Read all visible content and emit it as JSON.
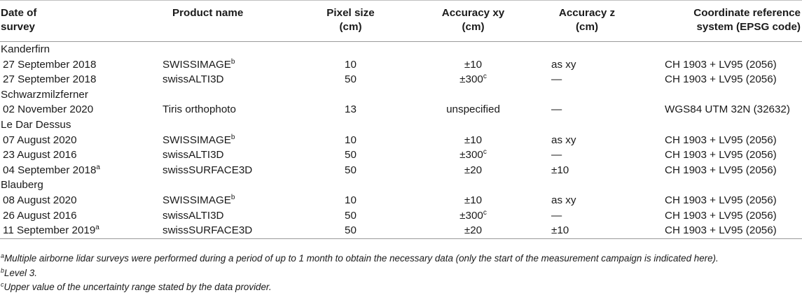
{
  "header": {
    "date": "Date of survey",
    "product": "Product name",
    "pixel": "Pixel size (cm)",
    "acc_xy": "Accuracy xy (cm)",
    "acc_z": "Accuracy z (cm)",
    "crs": "Coordinate reference system (EPSG code)"
  },
  "groups": [
    {
      "name": "Kanderfirn",
      "rows": [
        {
          "date": "27 September 2018",
          "date_sup": "",
          "product": "SWISSIMAGE",
          "product_sup": "b",
          "pixel": "10",
          "acc_xy": "±10",
          "acc_xy_sup": "",
          "acc_z": "as xy",
          "crs": "CH 1903 + LV95 (2056)"
        },
        {
          "date": "27 September 2018",
          "date_sup": "",
          "product": "swissALTI3D",
          "product_sup": "",
          "pixel": "50",
          "acc_xy": "±300",
          "acc_xy_sup": "c",
          "acc_z": "—",
          "crs": "CH 1903 + LV95 (2056)"
        }
      ]
    },
    {
      "name": "Schwarzmilzferner",
      "rows": [
        {
          "date": "02 November 2020",
          "date_sup": "",
          "product": "Tiris orthophoto",
          "product_sup": "",
          "pixel": "13",
          "acc_xy": "unspecified",
          "acc_xy_sup": "",
          "acc_z": "—",
          "crs": "WGS84 UTM 32N (32632)"
        }
      ]
    },
    {
      "name": "Le Dar Dessus",
      "rows": [
        {
          "date": "07 August 2020",
          "date_sup": "",
          "product": "SWISSIMAGE",
          "product_sup": "b",
          "pixel": "10",
          "acc_xy": "±10",
          "acc_xy_sup": "",
          "acc_z": "as xy",
          "crs": "CH 1903 + LV95 (2056)"
        },
        {
          "date": "23 August 2016",
          "date_sup": "",
          "product": "swissALTI3D",
          "product_sup": "",
          "pixel": "50",
          "acc_xy": "±300",
          "acc_xy_sup": "c",
          "acc_z": "—",
          "crs": "CH 1903 + LV95 (2056)"
        },
        {
          "date": "04 September 2018",
          "date_sup": "a",
          "product": "swissSURFACE3D",
          "product_sup": "",
          "pixel": "50",
          "acc_xy": "±20",
          "acc_xy_sup": "",
          "acc_z": "±10",
          "crs": "CH 1903 + LV95 (2056)"
        }
      ]
    },
    {
      "name": "Blauberg",
      "rows": [
        {
          "date": "08 August 2020",
          "date_sup": "",
          "product": "SWISSIMAGE",
          "product_sup": "b",
          "pixel": "10",
          "acc_xy": "±10",
          "acc_xy_sup": "",
          "acc_z": "as xy",
          "crs": "CH 1903 + LV95 (2056)"
        },
        {
          "date": "26 August 2016",
          "date_sup": "",
          "product": "swissALTI3D",
          "product_sup": "",
          "pixel": "50",
          "acc_xy": "±300",
          "acc_xy_sup": "c",
          "acc_z": "—",
          "crs": "CH 1903 + LV95 (2056)"
        },
        {
          "date": "11 September 2019",
          "date_sup": "a",
          "product": "swissSURFACE3D",
          "product_sup": "",
          "pixel": "50",
          "acc_xy": "±20",
          "acc_xy_sup": "",
          "acc_z": "±10",
          "crs": "CH 1903 + LV95 (2056)"
        }
      ]
    }
  ],
  "footnotes": [
    {
      "mark": "a",
      "text": "Multiple airborne lidar surveys were performed during a period of up to 1 month to obtain the necessary data (only the start of the measurement campaign is indicated here)."
    },
    {
      "mark": "b",
      "text": "Level 3."
    },
    {
      "mark": "c",
      "text": "Upper value of the uncertainty range stated by the data provider."
    }
  ]
}
